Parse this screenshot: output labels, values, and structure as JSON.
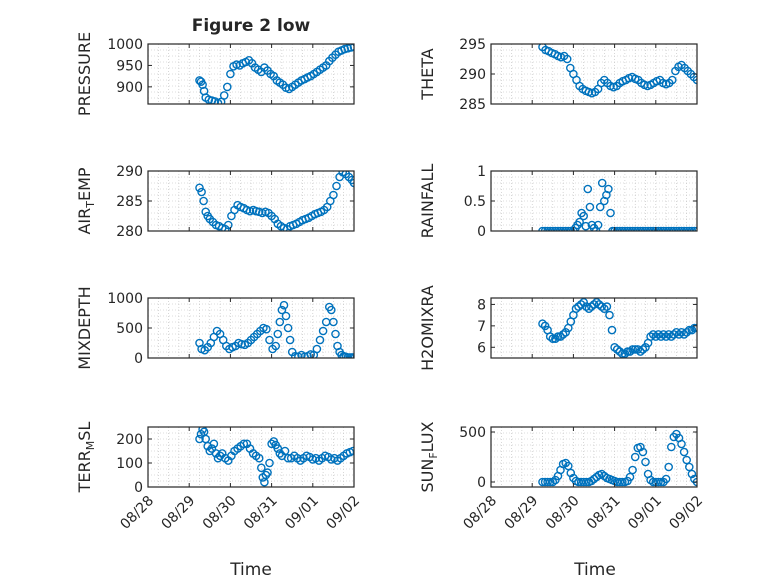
{
  "figure": {
    "title": "Figure 2 low",
    "xlabel": "Time"
  },
  "colors": {
    "marker": "#0072BD",
    "axes": "#262626",
    "grid": "#bdbdbd"
  },
  "chart_data": [
    {
      "type": "scatter",
      "ylabel": "PRESSURE",
      "ylim": [
        860,
        1000
      ],
      "yticks": [
        900,
        950,
        1000
      ],
      "xlim": [
        0,
        4
      ],
      "xtick_labels": [],
      "grid": true,
      "x": [
        1.0,
        1.03,
        1.06,
        1.09,
        1.12,
        1.18,
        1.24,
        1.3,
        1.36,
        1.42,
        1.48,
        1.54,
        1.6,
        1.66,
        1.72,
        1.78,
        1.84,
        1.9,
        1.96,
        2.02,
        2.08,
        2.14,
        2.2,
        2.26,
        2.32,
        2.38,
        2.44,
        2.5,
        2.56,
        2.62,
        2.68,
        2.74,
        2.8,
        2.86,
        2.92,
        2.98,
        3.04,
        3.1,
        3.16,
        3.22,
        3.28,
        3.34,
        3.4,
        3.46,
        3.52,
        3.58,
        3.64,
        3.7,
        3.76,
        3.82,
        3.88,
        3.94,
        4.0
      ],
      "y": [
        915,
        912,
        905,
        890,
        875,
        870,
        868,
        866,
        862,
        865,
        880,
        900,
        930,
        948,
        952,
        950,
        955,
        958,
        962,
        955,
        945,
        940,
        935,
        945,
        938,
        930,
        925,
        915,
        910,
        905,
        898,
        895,
        900,
        905,
        910,
        915,
        918,
        922,
        925,
        930,
        935,
        940,
        945,
        950,
        960,
        968,
        975,
        982,
        985,
        988,
        990,
        992,
        993
      ]
    },
    {
      "type": "scatter",
      "ylabel": "THETA",
      "ylim": [
        285,
        295
      ],
      "yticks": [
        285,
        290,
        295
      ],
      "xlim": [
        0,
        4
      ],
      "xtick_labels": [],
      "grid": true,
      "x": [
        1.0,
        1.06,
        1.12,
        1.18,
        1.24,
        1.3,
        1.36,
        1.42,
        1.48,
        1.54,
        1.6,
        1.66,
        1.72,
        1.78,
        1.84,
        1.9,
        1.96,
        2.02,
        2.08,
        2.14,
        2.2,
        2.26,
        2.32,
        2.38,
        2.44,
        2.5,
        2.56,
        2.62,
        2.68,
        2.74,
        2.8,
        2.86,
        2.92,
        2.98,
        3.04,
        3.1,
        3.16,
        3.22,
        3.28,
        3.34,
        3.4,
        3.46,
        3.52,
        3.58,
        3.64,
        3.7,
        3.76,
        3.82,
        3.88,
        3.94,
        4.0
      ],
      "y": [
        294.5,
        294.0,
        293.8,
        293.5,
        293.3,
        293.0,
        292.8,
        293.0,
        292.5,
        291.0,
        290.0,
        289.0,
        288.0,
        287.5,
        287.2,
        287.0,
        286.8,
        287.0,
        287.5,
        288.5,
        289.0,
        288.5,
        288.0,
        287.8,
        288.0,
        288.5,
        288.8,
        289.0,
        289.3,
        289.5,
        289.2,
        289.0,
        288.5,
        288.2,
        288.0,
        288.2,
        288.5,
        288.8,
        289.0,
        288.5,
        288.3,
        288.5,
        289.0,
        290.5,
        291.2,
        291.5,
        291.0,
        290.5,
        290.0,
        289.5,
        289.0
      ]
    },
    {
      "type": "scatter",
      "ylabel": "AIR_TEMP",
      "ylim": [
        280,
        290
      ],
      "yticks": [
        280,
        285,
        290
      ],
      "xlim": [
        0,
        4
      ],
      "xtick_labels": [],
      "grid": true,
      "x": [
        1.0,
        1.04,
        1.08,
        1.12,
        1.16,
        1.2,
        1.26,
        1.32,
        1.38,
        1.44,
        1.5,
        1.56,
        1.62,
        1.68,
        1.74,
        1.8,
        1.86,
        1.92,
        1.98,
        2.04,
        2.1,
        2.16,
        2.22,
        2.28,
        2.34,
        2.4,
        2.46,
        2.52,
        2.58,
        2.64,
        2.7,
        2.76,
        2.82,
        2.88,
        2.94,
        3.0,
        3.06,
        3.12,
        3.18,
        3.24,
        3.3,
        3.36,
        3.42,
        3.48,
        3.54,
        3.6,
        3.66,
        3.72,
        3.78,
        3.84,
        3.9,
        3.96,
        4.0
      ],
      "y": [
        287.2,
        286.5,
        285.0,
        283.2,
        282.5,
        282.0,
        281.5,
        281.0,
        280.8,
        280.5,
        280.3,
        281.0,
        282.5,
        283.5,
        284.3,
        284.0,
        283.8,
        283.5,
        283.3,
        283.5,
        283.3,
        283.2,
        283.0,
        283.2,
        283.0,
        282.5,
        282.0,
        281.2,
        280.8,
        280.5,
        280.3,
        280.8,
        281.0,
        281.2,
        281.5,
        281.8,
        282.0,
        282.2,
        282.5,
        282.8,
        283.0,
        283.2,
        283.5,
        284.0,
        285.0,
        286.0,
        287.5,
        289.0,
        289.8,
        289.5,
        289.0,
        288.5,
        288.0
      ]
    },
    {
      "type": "scatter",
      "ylabel": "RAINFALL",
      "ylim": [
        0,
        1
      ],
      "yticks": [
        0,
        0.5,
        1
      ],
      "xlim": [
        0,
        4
      ],
      "xtick_labels": [],
      "grid": true,
      "x": [
        1.0,
        1.05,
        1.1,
        1.15,
        1.2,
        1.25,
        1.3,
        1.35,
        1.4,
        1.45,
        1.5,
        1.55,
        1.6,
        1.64,
        1.68,
        1.72,
        1.76,
        1.8,
        1.84,
        1.88,
        1.92,
        1.96,
        2.0,
        2.04,
        2.08,
        2.12,
        2.16,
        2.2,
        2.24,
        2.28,
        2.32,
        2.36,
        2.4,
        2.45,
        2.5,
        2.55,
        2.6,
        2.65,
        2.7,
        2.75,
        2.8,
        2.85,
        2.9,
        2.95,
        3.0,
        3.05,
        3.1,
        3.15,
        3.2,
        3.25,
        3.3,
        3.35,
        3.4,
        3.45,
        3.5,
        3.55,
        3.6,
        3.65,
        3.7,
        3.75,
        3.8,
        3.85,
        3.9,
        3.95,
        4.0
      ],
      "y": [
        0,
        0,
        0,
        0,
        0,
        0,
        0,
        0,
        0,
        0,
        0,
        0,
        0,
        0.05,
        0.1,
        0.15,
        0.3,
        0.25,
        0.08,
        0.7,
        0.4,
        0.1,
        0.05,
        0,
        0.1,
        0.4,
        0.8,
        0.5,
        0.6,
        0.7,
        0.3,
        0,
        0,
        0,
        0,
        0,
        0,
        0,
        0,
        0,
        0,
        0,
        0,
        0,
        0,
        0,
        0,
        0,
        0,
        0,
        0,
        0,
        0,
        0,
        0,
        0,
        0,
        0,
        0,
        0,
        0,
        0,
        0,
        0,
        0
      ]
    },
    {
      "type": "scatter",
      "ylabel": "MIXDEPTH",
      "ylim": [
        0,
        1000
      ],
      "yticks": [
        0,
        500,
        1000
      ],
      "xlim": [
        0,
        4
      ],
      "xtick_labels": [],
      "grid": true,
      "x": [
        1.0,
        1.04,
        1.1,
        1.16,
        1.22,
        1.28,
        1.34,
        1.4,
        1.46,
        1.52,
        1.58,
        1.64,
        1.7,
        1.76,
        1.82,
        1.88,
        1.94,
        2.0,
        2.06,
        2.12,
        2.18,
        2.24,
        2.3,
        2.36,
        2.42,
        2.48,
        2.52,
        2.56,
        2.6,
        2.64,
        2.68,
        2.72,
        2.76,
        2.8,
        2.86,
        2.92,
        2.98,
        3.04,
        3.1,
        3.16,
        3.22,
        3.28,
        3.34,
        3.4,
        3.46,
        3.52,
        3.56,
        3.6,
        3.64,
        3.68,
        3.72,
        3.76,
        3.8,
        3.84,
        3.88,
        3.92,
        3.96,
        4.0
      ],
      "y": [
        250,
        150,
        130,
        180,
        250,
        350,
        450,
        400,
        300,
        200,
        150,
        180,
        200,
        250,
        230,
        220,
        250,
        300,
        350,
        400,
        450,
        500,
        480,
        300,
        150,
        200,
        400,
        600,
        800,
        880,
        700,
        500,
        300,
        100,
        30,
        20,
        50,
        20,
        30,
        60,
        50,
        150,
        300,
        450,
        600,
        850,
        800,
        600,
        400,
        200,
        100,
        50,
        30,
        20,
        10,
        10,
        10,
        10
      ]
    },
    {
      "type": "scatter",
      "ylabel": "H2OMIXRA",
      "ylim": [
        5.5,
        8.3
      ],
      "yticks": [
        6,
        7,
        8
      ],
      "xlim": [
        0,
        4
      ],
      "xtick_labels": [],
      "grid": true,
      "x": [
        1.0,
        1.05,
        1.1,
        1.15,
        1.2,
        1.25,
        1.3,
        1.35,
        1.4,
        1.45,
        1.5,
        1.55,
        1.6,
        1.65,
        1.7,
        1.75,
        1.8,
        1.85,
        1.9,
        1.95,
        2.0,
        2.05,
        2.1,
        2.15,
        2.2,
        2.25,
        2.3,
        2.35,
        2.4,
        2.45,
        2.5,
        2.55,
        2.6,
        2.65,
        2.7,
        2.75,
        2.8,
        2.85,
        2.9,
        2.95,
        3.0,
        3.05,
        3.1,
        3.15,
        3.2,
        3.25,
        3.3,
        3.35,
        3.4,
        3.45,
        3.5,
        3.55,
        3.6,
        3.65,
        3.7,
        3.75,
        3.8,
        3.85,
        3.9,
        3.95,
        4.0
      ],
      "y": [
        7.1,
        7.0,
        6.8,
        6.5,
        6.4,
        6.4,
        6.5,
        6.5,
        6.6,
        6.7,
        6.9,
        7.2,
        7.5,
        7.8,
        7.9,
        8.0,
        8.1,
        7.9,
        7.8,
        7.9,
        8.0,
        8.1,
        8.0,
        7.9,
        7.8,
        7.9,
        7.5,
        6.8,
        6.0,
        5.9,
        5.8,
        5.7,
        5.7,
        5.8,
        5.8,
        5.9,
        5.9,
        5.9,
        5.8,
        5.9,
        6.0,
        6.2,
        6.5,
        6.6,
        6.5,
        6.6,
        6.5,
        6.6,
        6.5,
        6.6,
        6.5,
        6.6,
        6.7,
        6.6,
        6.7,
        6.6,
        6.7,
        6.8,
        6.8,
        6.9,
        6.9
      ]
    },
    {
      "type": "scatter",
      "ylabel": "TERR_MSL",
      "ylim": [
        0,
        250
      ],
      "yticks": [
        0,
        100,
        200
      ],
      "xlim": [
        0,
        4
      ],
      "xtick_labels": [
        "08/28",
        "08/29",
        "08/30",
        "08/31",
        "09/01",
        "09/02"
      ],
      "grid": true,
      "x": [
        1.0,
        1.03,
        1.06,
        1.09,
        1.12,
        1.16,
        1.2,
        1.24,
        1.28,
        1.32,
        1.36,
        1.4,
        1.44,
        1.5,
        1.56,
        1.62,
        1.68,
        1.74,
        1.8,
        1.86,
        1.92,
        1.98,
        2.04,
        2.1,
        2.16,
        2.2,
        2.23,
        2.26,
        2.29,
        2.32,
        2.36,
        2.4,
        2.44,
        2.48,
        2.52,
        2.56,
        2.6,
        2.66,
        2.72,
        2.78,
        2.84,
        2.9,
        2.96,
        3.02,
        3.08,
        3.14,
        3.2,
        3.26,
        3.32,
        3.38,
        3.44,
        3.5,
        3.56,
        3.62,
        3.68,
        3.74,
        3.8,
        3.86,
        3.92,
        3.98
      ],
      "y": [
        200,
        220,
        240,
        230,
        200,
        170,
        150,
        160,
        180,
        140,
        120,
        130,
        140,
        120,
        110,
        130,
        150,
        160,
        170,
        180,
        180,
        160,
        140,
        130,
        120,
        80,
        40,
        20,
        50,
        60,
        100,
        180,
        190,
        175,
        160,
        140,
        130,
        150,
        120,
        120,
        130,
        120,
        110,
        120,
        130,
        125,
        115,
        120,
        110,
        120,
        130,
        125,
        115,
        120,
        110,
        120,
        130,
        140,
        145,
        150
      ]
    },
    {
      "type": "scatter",
      "ylabel": "SUN_FLUX",
      "ylim": [
        -50,
        550
      ],
      "yticks": [
        0,
        500
      ],
      "xlim": [
        0,
        4
      ],
      "xtick_labels": [
        "08/28",
        "08/29",
        "08/30",
        "08/31",
        "09/01",
        "09/02"
      ],
      "grid": true,
      "x": [
        1.0,
        1.05,
        1.1,
        1.15,
        1.2,
        1.25,
        1.3,
        1.35,
        1.4,
        1.45,
        1.5,
        1.55,
        1.6,
        1.65,
        1.7,
        1.75,
        1.8,
        1.85,
        1.9,
        1.95,
        2.0,
        2.05,
        2.1,
        2.15,
        2.2,
        2.25,
        2.3,
        2.35,
        2.4,
        2.45,
        2.5,
        2.55,
        2.6,
        2.65,
        2.7,
        2.75,
        2.8,
        2.85,
        2.9,
        2.95,
        3.0,
        3.05,
        3.1,
        3.15,
        3.2,
        3.25,
        3.3,
        3.35,
        3.4,
        3.45,
        3.5,
        3.55,
        3.6,
        3.65,
        3.7,
        3.75,
        3.8,
        3.85,
        3.9,
        3.95,
        4.0
      ],
      "y": [
        0,
        0,
        0,
        0,
        0,
        20,
        60,
        120,
        180,
        190,
        160,
        90,
        40,
        10,
        0,
        0,
        0,
        0,
        0,
        10,
        30,
        50,
        70,
        80,
        60,
        40,
        30,
        20,
        10,
        0,
        0,
        0,
        0,
        10,
        50,
        120,
        250,
        340,
        350,
        300,
        200,
        80,
        20,
        0,
        0,
        0,
        0,
        0,
        30,
        150,
        350,
        450,
        480,
        440,
        380,
        300,
        220,
        150,
        80,
        30,
        0
      ]
    }
  ]
}
